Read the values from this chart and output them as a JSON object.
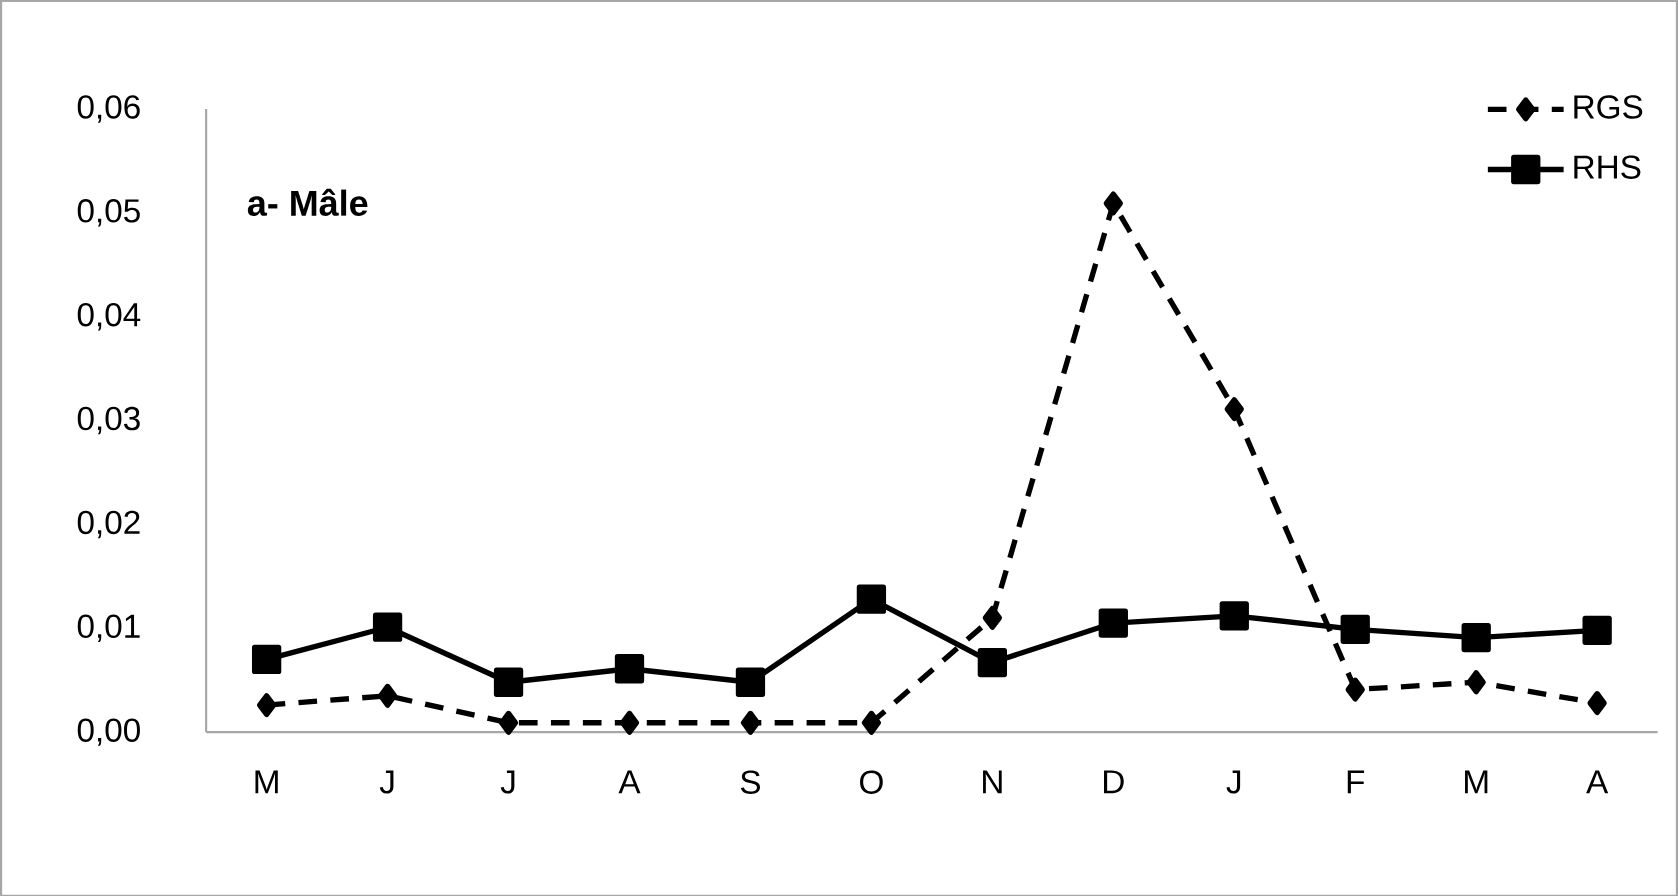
{
  "chart_data": {
    "type": "line",
    "title": "a- Mâle",
    "categories": [
      "M",
      "J",
      "J",
      "A",
      "S",
      "O",
      "N",
      "D",
      "J",
      "F",
      "M",
      "A"
    ],
    "series": [
      {
        "name": "RGS",
        "color": "#000000",
        "marker": "diamond",
        "line_style": "dashed",
        "values": [
          0.0026,
          0.0035,
          0.0009,
          0.0009,
          0.0009,
          0.0009,
          0.011,
          0.0509,
          0.0311,
          0.0041,
          0.0048,
          0.0028
        ]
      },
      {
        "name": "RHS",
        "color": "#000000",
        "marker": "square",
        "line_style": "solid",
        "values": [
          0.007,
          0.0101,
          0.0048,
          0.0061,
          0.0048,
          0.0128,
          0.0067,
          0.0105,
          0.0112,
          0.0099,
          0.0091,
          0.0098
        ]
      }
    ],
    "ylim": [
      0,
      0.06
    ],
    "yticks": [
      {
        "value": 0,
        "label": "0,00"
      },
      {
        "value": 0.01,
        "label": "0,01"
      },
      {
        "value": 0.02,
        "label": "0,02"
      },
      {
        "value": 0.03,
        "label": "0,03"
      },
      {
        "value": 0.04,
        "label": "0,04"
      },
      {
        "value": 0.05,
        "label": "0,05"
      },
      {
        "value": 0.06,
        "label": "0,06"
      }
    ],
    "grid": false,
    "legend": "top right"
  }
}
